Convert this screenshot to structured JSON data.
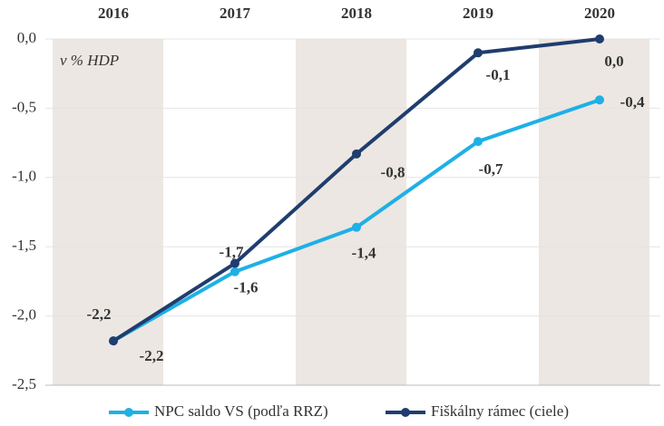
{
  "chart_data": {
    "type": "line",
    "annotation": "v % HDP",
    "categories": [
      "2016",
      "2017",
      "2018",
      "2019",
      "2020"
    ],
    "series": [
      {
        "name": "NPC saldo VS (podľa RRZ)",
        "color": "#1eb0e6",
        "values": [
          -2.18,
          -1.68,
          -1.36,
          -0.74,
          -0.44
        ],
        "value_labels": [
          "-2,2",
          "-1,7",
          "-1,4",
          "-0,7",
          "-0,4"
        ]
      },
      {
        "name": "Fiškálny rámec (ciele)",
        "color": "#1f3d6e",
        "values": [
          -2.18,
          -1.62,
          -0.83,
          -0.1,
          0.0
        ],
        "value_labels": [
          "-2,2",
          "-1,6",
          "-0,8",
          "-0,1",
          "0,0"
        ]
      }
    ],
    "ylim": [
      -2.5,
      0
    ],
    "yticks": [
      {
        "value": 0,
        "label": "0,0"
      },
      {
        "value": -0.5,
        "label": "-0,5"
      },
      {
        "value": -1,
        "label": "-1,0"
      },
      {
        "value": -1.5,
        "label": "-1,5"
      },
      {
        "value": -2,
        "label": "-2,0"
      },
      {
        "value": -2.5,
        "label": "-2,5"
      }
    ],
    "grid": true,
    "legend": "bottom"
  }
}
